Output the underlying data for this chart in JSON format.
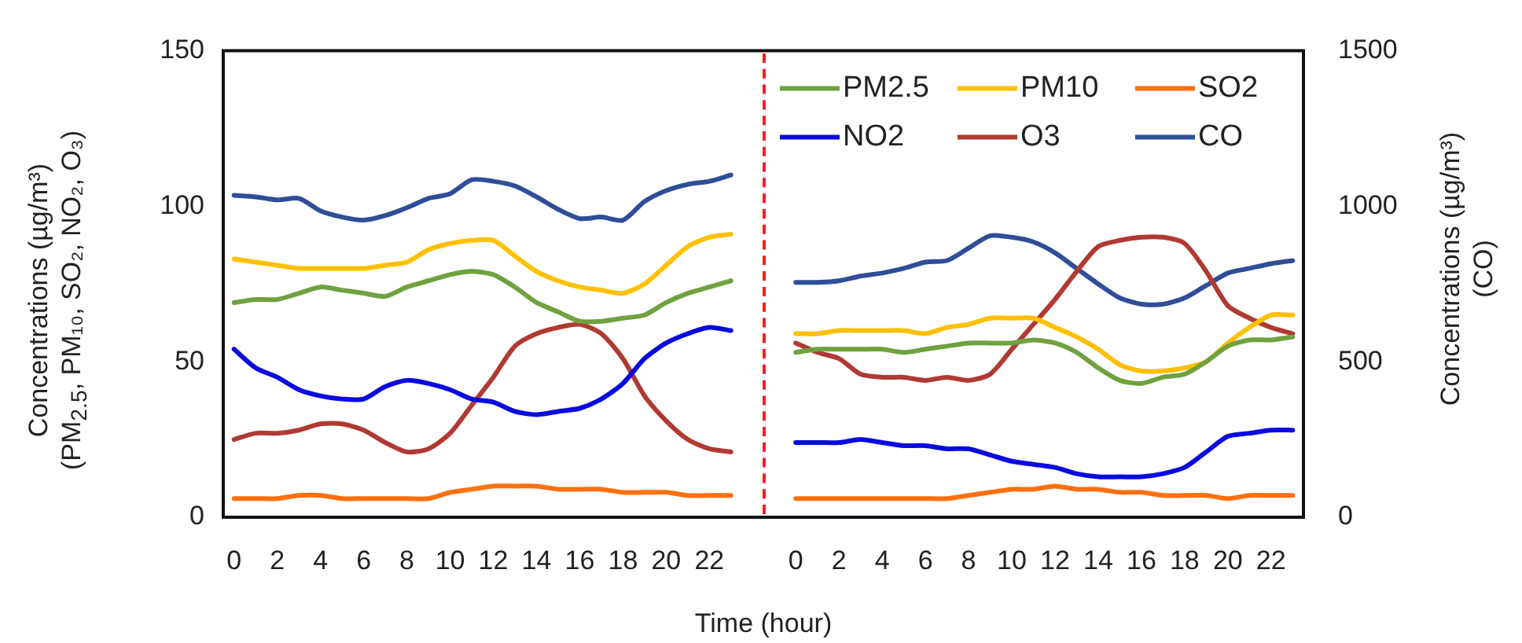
{
  "chart_data": {
    "type": "line",
    "xlabel": "Time (hour)",
    "ylabel": "Concentrations (µg/m³)\n(PM$_{2.5}$, PM₁₀, SO₂, NO₂, O₃)",
    "y2label": "Concentrations  (µg/m³)\n(CO)",
    "categories": [
      "0",
      null,
      "2",
      null,
      "4",
      null,
      "6",
      null,
      "8",
      null,
      "10",
      null,
      "12",
      null,
      "14",
      null,
      "16",
      null,
      "18",
      null,
      "20",
      null,
      "22",
      null,
      null,
      null,
      "0",
      null,
      "2",
      null,
      "4",
      null,
      "6",
      null,
      "8",
      null,
      "10",
      null,
      "12",
      null,
      "14",
      null,
      "16",
      null,
      "18",
      null,
      "20",
      null,
      "22",
      null
    ],
    "series": [
      {
        "name": "PM2.5",
        "color": "#70a13f",
        "values": [
          69,
          70,
          70,
          72,
          74,
          73,
          72,
          71,
          74,
          76,
          78,
          79,
          78,
          74,
          69,
          66,
          63,
          63,
          64,
          65,
          69,
          72,
          74,
          76,
          null,
          null,
          53,
          54,
          54,
          54,
          54,
          53,
          54,
          55,
          56,
          56,
          56,
          57,
          56,
          53,
          48,
          44,
          43,
          45,
          46,
          50,
          55,
          57,
          57,
          58
        ]
      },
      {
        "name": "PM10",
        "color": "#ffc000",
        "values": [
          83,
          82,
          81,
          80,
          80,
          80,
          80,
          81,
          82,
          86,
          88,
          89,
          89,
          84,
          79,
          76,
          74,
          73,
          72,
          75,
          81,
          87,
          90,
          91,
          null,
          null,
          59,
          59,
          60,
          60,
          60,
          60,
          59,
          61,
          62,
          64,
          64,
          64,
          61,
          58,
          54,
          49,
          47,
          47,
          48,
          50,
          56,
          61,
          65,
          65
        ]
      },
      {
        "name": "SO2",
        "color": "#ff7010",
        "values": [
          6,
          6,
          6,
          7,
          7,
          6,
          6,
          6,
          6,
          6,
          8,
          9,
          10,
          10,
          10,
          9,
          9,
          9,
          8,
          8,
          8,
          7,
          7,
          7,
          null,
          null,
          6,
          6,
          6,
          6,
          6,
          6,
          6,
          6,
          7,
          8,
          9,
          9,
          10,
          9,
          9,
          8,
          8,
          7,
          7,
          7,
          6,
          7,
          7,
          7
        ]
      },
      {
        "name": "NO2",
        "color": "#0a0ae0",
        "values": [
          54,
          48,
          45,
          41,
          39,
          38,
          38,
          42,
          44,
          43,
          41,
          38,
          37,
          34,
          33,
          34,
          35,
          38,
          43,
          51,
          56,
          59,
          61,
          60,
          null,
          null,
          24,
          24,
          24,
          25,
          24,
          23,
          23,
          22,
          22,
          20,
          18,
          17,
          16,
          14,
          13,
          13,
          13,
          14,
          16,
          21,
          26,
          27,
          28,
          28
        ]
      },
      {
        "name": "O3",
        "color": "#b03a33",
        "values": [
          25,
          27,
          27,
          28,
          30,
          30,
          28,
          24,
          21,
          22,
          27,
          36,
          45,
          55,
          59,
          61,
          62,
          59,
          51,
          39,
          31,
          25,
          22,
          21,
          null,
          null,
          56,
          53,
          51,
          46,
          45,
          45,
          44,
          45,
          44,
          46,
          54,
          62,
          70,
          79,
          87,
          89,
          90,
          90,
          88,
          79,
          68,
          64,
          61,
          59
        ]
      },
      {
        "name": "CO",
        "color": "#2f4e97",
        "axis": "y2",
        "values": [
          1035,
          1030,
          1020,
          1025,
          985,
          965,
          955,
          970,
          995,
          1025,
          1040,
          1085,
          1080,
          1065,
          1030,
          990,
          960,
          965,
          955,
          1015,
          1050,
          1070,
          1080,
          1100,
          null,
          null,
          755,
          755,
          760,
          775,
          785,
          800,
          820,
          825,
          865,
          905,
          900,
          885,
          850,
          800,
          750,
          705,
          685,
          685,
          705,
          745,
          785,
          800,
          815,
          825
        ]
      }
    ],
    "ylim": [
      0,
      150
    ],
    "yticks": [
      0,
      50,
      100,
      150
    ],
    "y2lim": [
      0,
      1500
    ],
    "y2ticks": [
      0,
      500,
      1000,
      1500
    ],
    "legend": "top right",
    "grid": false,
    "marker": "none",
    "line_style": "solid"
  }
}
